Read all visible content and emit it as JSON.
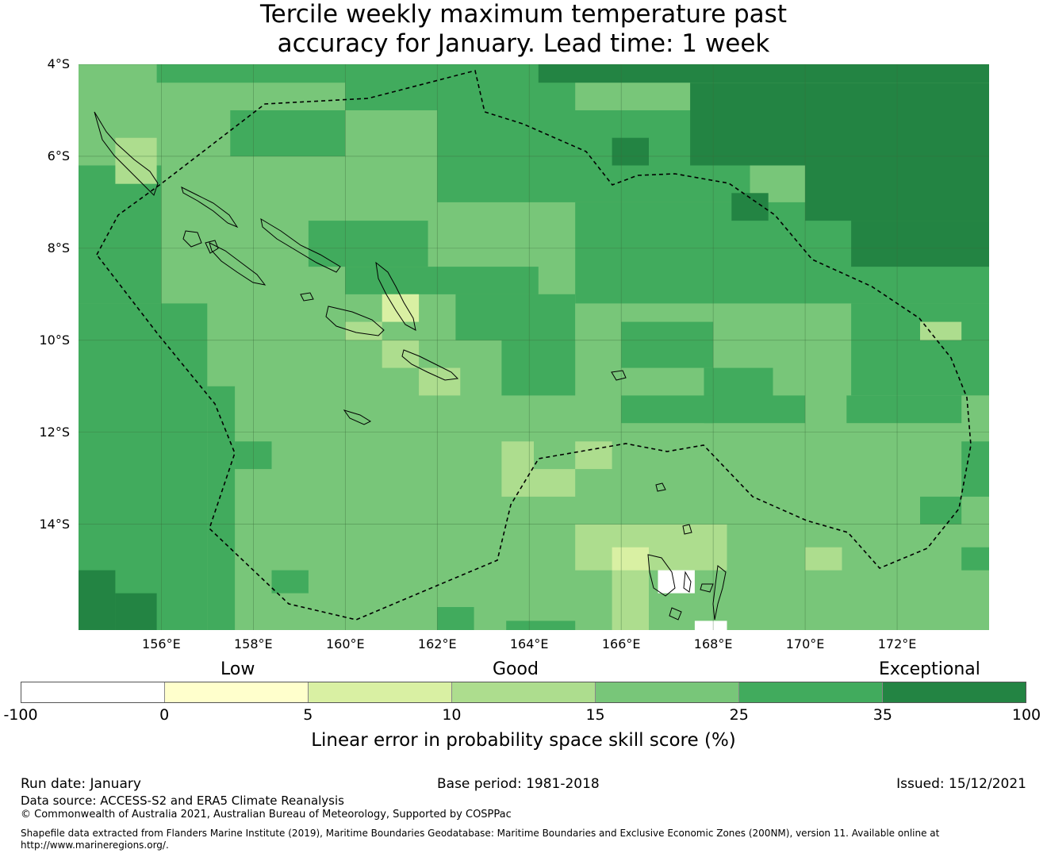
{
  "title": {
    "line1": "Tercile weekly maximum temperature past",
    "line2": "accuracy for January. Lead time: 1 week"
  },
  "map": {
    "lat_labels": [
      "4°S",
      "6°S",
      "8°S",
      "10°S",
      "12°S",
      "14°S"
    ],
    "lon_labels": [
      "156°E",
      "158°E",
      "160°E",
      "162°E",
      "164°E",
      "166°E",
      "168°E",
      "170°E",
      "172°E"
    ],
    "extent": {
      "lon_min": 154.2,
      "lon_max": 174,
      "lat_north": -4,
      "lat_south": -16.3
    },
    "cell_size_deg": 0.83,
    "default_level": 4,
    "patches": [
      {
        "level": 5,
        "lon_min": 155.9,
        "lon_max": 158.4,
        "lat_n": -4.0,
        "lat_s": -4.4
      },
      {
        "level": 5,
        "lon_min": 158.4,
        "lon_max": 160.0,
        "lat_n": -4.0,
        "lat_s": -4.4
      },
      {
        "level": 5,
        "lon_min": 160.0,
        "lon_max": 165.0,
        "lat_n": -4.0,
        "lat_s": -5.0
      },
      {
        "level": 5,
        "lon_min": 157.5,
        "lon_max": 160.0,
        "lat_n": -5.0,
        "lat_s": -6.0
      },
      {
        "level": 5,
        "lon_min": 154.2,
        "lon_max": 156.0,
        "lat_n": -6.2,
        "lat_s": -9.2
      },
      {
        "level": 5,
        "lon_min": 154.2,
        "lon_max": 157.0,
        "lat_n": -9.2,
        "lat_s": -16.3
      },
      {
        "level": 5,
        "lon_min": 157.0,
        "lon_max": 157.6,
        "lat_n": -11.0,
        "lat_s": -16.3
      },
      {
        "level": 5,
        "lon_min": 157.6,
        "lon_max": 158.4,
        "lat_n": -12.2,
        "lat_s": -12.8
      },
      {
        "level": 5,
        "lon_min": 162.0,
        "lon_max": 168.8,
        "lat_n": -5.0,
        "lat_s": -7.0
      },
      {
        "level": 5,
        "lon_min": 159.2,
        "lon_max": 161.8,
        "lat_n": -7.4,
        "lat_s": -8.4
      },
      {
        "level": 5,
        "lon_min": 160.0,
        "lon_max": 164.2,
        "lat_n": -8.4,
        "lat_s": -9.0
      },
      {
        "level": 5,
        "lon_min": 162.4,
        "lon_max": 165.0,
        "lat_n": -9.0,
        "lat_s": -10.0
      },
      {
        "level": 5,
        "lon_min": 163.4,
        "lon_max": 165.0,
        "lat_n": -10.0,
        "lat_s": -11.2
      },
      {
        "level": 5,
        "lon_min": 165.0,
        "lon_max": 174.0,
        "lat_n": -7.0,
        "lat_s": -9.2
      },
      {
        "level": 5,
        "lon_min": 171.0,
        "lon_max": 174.0,
        "lat_n": -9.2,
        "lat_s": -11.2
      },
      {
        "level": 5,
        "lon_min": 166.0,
        "lon_max": 168.0,
        "lat_n": -9.6,
        "lat_s": -10.6
      },
      {
        "level": 5,
        "lon_min": 167.8,
        "lon_max": 169.3,
        "lat_n": -10.6,
        "lat_s": -11.8
      },
      {
        "level": 5,
        "lon_min": 166.0,
        "lon_max": 168.0,
        "lat_n": -11.2,
        "lat_s": -11.8
      },
      {
        "level": 5,
        "lon_min": 169.3,
        "lon_max": 170.0,
        "lat_n": -11.2,
        "lat_s": -11.8
      },
      {
        "level": 5,
        "lon_min": 170.9,
        "lon_max": 173.4,
        "lat_n": -11.2,
        "lat_s": -11.8
      },
      {
        "level": 5,
        "lon_min": 173.4,
        "lon_max": 174.0,
        "lat_n": -12.2,
        "lat_s": -13.4
      },
      {
        "level": 5,
        "lon_min": 172.5,
        "lon_max": 173.4,
        "lat_n": -13.4,
        "lat_s": -14.0
      },
      {
        "level": 5,
        "lon_min": 173.4,
        "lon_max": 174.0,
        "lat_n": -14.5,
        "lat_s": -15.0
      },
      {
        "level": 5,
        "lon_min": 158.4,
        "lon_max": 159.2,
        "lat_n": -15.0,
        "lat_s": -15.5
      },
      {
        "level": 5,
        "lon_min": 162.0,
        "lon_max": 162.8,
        "lat_n": -15.8,
        "lat_s": -16.3
      },
      {
        "level": 5,
        "lon_min": 163.5,
        "lon_max": 165.0,
        "lat_n": -16.1,
        "lat_s": -16.3
      },
      {
        "level": 6,
        "lon_min": 164.2,
        "lon_max": 174.0,
        "lat_n": -4.0,
        "lat_s": -4.4
      },
      {
        "level": 6,
        "lon_min": 167.5,
        "lon_max": 174.0,
        "lat_n": -4.4,
        "lat_s": -6.2
      },
      {
        "level": 6,
        "lon_min": 170.0,
        "lon_max": 174.0,
        "lat_n": -6.2,
        "lat_s": -7.4
      },
      {
        "level": 6,
        "lon_min": 171.0,
        "lon_max": 174.0,
        "lat_n": -7.4,
        "lat_s": -8.4
      },
      {
        "level": 6,
        "lon_min": 168.4,
        "lon_max": 169.2,
        "lat_n": -6.8,
        "lat_s": -7.4
      },
      {
        "level": 6,
        "lon_min": 165.8,
        "lon_max": 166.6,
        "lat_n": -5.6,
        "lat_s": -6.2
      },
      {
        "level": 6,
        "lon_min": 154.2,
        "lon_max": 155.0,
        "lat_n": -15.0,
        "lat_s": -16.3
      },
      {
        "level": 6,
        "lon_min": 155.0,
        "lon_max": 155.9,
        "lat_n": -15.5,
        "lat_s": -16.3
      },
      {
        "level": 3,
        "lon_min": 163.4,
        "lon_max": 164.1,
        "lat_n": -12.2,
        "lat_s": -13.4
      },
      {
        "level": 3,
        "lon_min": 164.1,
        "lon_max": 165.0,
        "lat_n": -12.8,
        "lat_s": -13.4
      },
      {
        "level": 3,
        "lon_min": 165.0,
        "lon_max": 165.8,
        "lat_n": -12.2,
        "lat_s": -12.8
      },
      {
        "level": 3,
        "lon_min": 165.0,
        "lon_max": 168.3,
        "lat_n": -14.0,
        "lat_s": -15.0
      },
      {
        "level": 3,
        "lon_min": 165.8,
        "lon_max": 166.6,
        "lat_n": -15.0,
        "lat_s": -16.3
      },
      {
        "level": 3,
        "lon_min": 170.0,
        "lon_max": 170.8,
        "lat_n": -14.5,
        "lat_s": -15.0
      },
      {
        "level": 3,
        "lon_min": 155.0,
        "lon_max": 155.9,
        "lat_n": -5.6,
        "lat_s": -6.6
      },
      {
        "level": 3,
        "lon_min": 160.0,
        "lon_max": 160.8,
        "lat_n": -9.6,
        "lat_s": -10.0
      },
      {
        "level": 3,
        "lon_min": 160.8,
        "lon_max": 161.6,
        "lat_n": -10.0,
        "lat_s": -10.6
      },
      {
        "level": 3,
        "lon_min": 161.6,
        "lon_max": 162.5,
        "lat_n": -10.6,
        "lat_s": -11.2
      },
      {
        "level": 3,
        "lon_min": 172.5,
        "lon_max": 173.4,
        "lat_n": -9.6,
        "lat_s": -10.0
      },
      {
        "level": 2,
        "lon_min": 160.8,
        "lon_max": 161.6,
        "lat_n": -9.0,
        "lat_s": -9.6
      },
      {
        "level": 2,
        "lon_min": 165.8,
        "lon_max": 166.6,
        "lat_n": -14.5,
        "lat_s": -15.0
      },
      {
        "level": 0,
        "lon_min": 166.8,
        "lon_max": 167.6,
        "lat_n": -15.0,
        "lat_s": -15.5
      },
      {
        "level": 0,
        "lon_min": 167.6,
        "lon_max": 168.3,
        "lat_n": -16.1,
        "lat_s": -16.3
      }
    ]
  },
  "legend": {
    "categories": [
      {
        "label": "Low"
      },
      {
        "label": "Good"
      },
      {
        "label": "Exceptional"
      }
    ],
    "ticks": [
      "-100",
      "0",
      "5",
      "10",
      "15",
      "25",
      "35",
      "100"
    ],
    "colors": [
      "#ffffff",
      "#ffffcc",
      "#d9f0a3",
      "#addd8e",
      "#78c679",
      "#41ab5d",
      "#238443"
    ],
    "title": "Linear error in probability space skill score (%)"
  },
  "footer": {
    "run_date": "Run date: January",
    "base_period": "Base period: 1981-2018",
    "issued": "Issued: 15/12/2021",
    "data_source": "Data source: ACCESS-S2 and ERA5 Climate Reanalysis",
    "copyright": "© Commonwealth of Australia 2021, Australian Bureau of Meteorology, Supported by COSPPac",
    "shapefile": "Shapefile data extracted from Flanders Marine Institute (2019), Maritime Boundaries Geodatabase: Maritime Boundaries and Exclusive Economic Zones (200NM), version 11. Available online at http://www.marineregions.org/."
  }
}
